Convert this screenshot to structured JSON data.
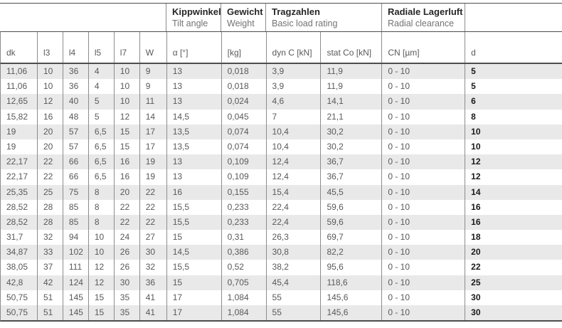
{
  "table": {
    "groups": [
      {
        "title": "Kippwinkel",
        "subtitle": "Tilt angle"
      },
      {
        "title": "Gewicht",
        "subtitle": "Weight"
      },
      {
        "title": "Tragzahlen",
        "subtitle": "Basic load rating"
      },
      {
        "title": "Radiale Lagerluft",
        "subtitle": "Radial clearance"
      }
    ],
    "columns": [
      "dk",
      "l3",
      "l4",
      "l5",
      "l7",
      "W",
      "α [°]",
      "[kg]",
      "dyn C [kN]",
      "stat Co [kN]",
      "CN [µm]",
      "d"
    ],
    "rows": [
      [
        "11,06",
        "10",
        "36",
        "4",
        "10",
        "9",
        "13",
        "0,018",
        "3,9",
        "11,9",
        "0 - 10",
        "5"
      ],
      [
        "11,06",
        "10",
        "36",
        "4",
        "10",
        "9",
        "13",
        "0,018",
        "3,9",
        "11,9",
        "0 - 10",
        "5"
      ],
      [
        "12,65",
        "12",
        "40",
        "5",
        "10",
        "11",
        "13",
        "0,024",
        "4,6",
        "14,1",
        "0 - 10",
        "6"
      ],
      [
        "15,82",
        "16",
        "48",
        "5",
        "12",
        "14",
        "14,5",
        "0,045",
        "7",
        "21,1",
        "0 - 10",
        "8"
      ],
      [
        "19",
        "20",
        "57",
        "6,5",
        "15",
        "17",
        "13,5",
        "0,074",
        "10,4",
        "30,2",
        "0 - 10",
        "10"
      ],
      [
        "19",
        "20",
        "57",
        "6,5",
        "15",
        "17",
        "13,5",
        "0,074",
        "10,4",
        "30,2",
        "0 - 10",
        "10"
      ],
      [
        "22,17",
        "22",
        "66",
        "6,5",
        "16",
        "19",
        "13",
        "0,109",
        "12,4",
        "36,7",
        "0 - 10",
        "12"
      ],
      [
        "22,17",
        "22",
        "66",
        "6,5",
        "16",
        "19",
        "13",
        "0,109",
        "12,4",
        "36,7",
        "0 - 10",
        "12"
      ],
      [
        "25,35",
        "25",
        "75",
        "8",
        "20",
        "22",
        "16",
        "0,155",
        "15,4",
        "45,5",
        "0 - 10",
        "14"
      ],
      [
        "28,52",
        "28",
        "85",
        "8",
        "22",
        "22",
        "15,5",
        "0,233",
        "22,4",
        "59,6",
        "0 - 10",
        "16"
      ],
      [
        "28,52",
        "28",
        "85",
        "8",
        "22",
        "22",
        "15,5",
        "0,233",
        "22,4",
        "59,6",
        "0 - 10",
        "16"
      ],
      [
        "31,7",
        "32",
        "94",
        "10",
        "24",
        "27",
        "15",
        "0,31",
        "26,3",
        "69,7",
        "0 - 10",
        "18"
      ],
      [
        "34,87",
        "33",
        "102",
        "10",
        "26",
        "30",
        "14,5",
        "0,386",
        "30,8",
        "82,2",
        "0 - 10",
        "20"
      ],
      [
        "38,05",
        "37",
        "111",
        "12",
        "26",
        "32",
        "15,5",
        "0,52",
        "38,2",
        "95,6",
        "0 - 10",
        "22"
      ],
      [
        "42,8",
        "42",
        "124",
        "12",
        "30",
        "36",
        "15",
        "0,705",
        "45,4",
        "118,6",
        "0 - 10",
        "25"
      ],
      [
        "50,75",
        "51",
        "145",
        "15",
        "35",
        "41",
        "17",
        "1,084",
        "55",
        "145,6",
        "0 - 10",
        "30"
      ],
      [
        "50,75",
        "51",
        "145",
        "15",
        "35",
        "41",
        "17",
        "1,084",
        "55",
        "145,6",
        "0 - 10",
        "30"
      ]
    ],
    "colors": {
      "stripe": "#e9e9e9",
      "border_dark": "#4d4d4d",
      "border_light": "#8c8c8c",
      "text": "#595959",
      "text_emphasis": "#1a1a1a"
    }
  }
}
